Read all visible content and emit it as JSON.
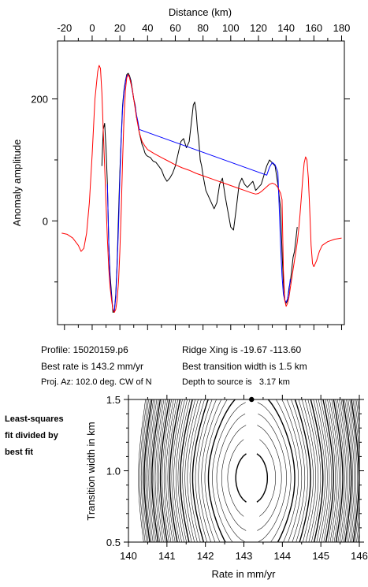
{
  "chart_data": [
    {
      "type": "line",
      "xlabel": "Distance (km)",
      "ylabel": "Anomaly amplitude",
      "xlim": [
        -25,
        182
      ],
      "ylim": [
        -170,
        295
      ],
      "xticks": [
        -20,
        0,
        20,
        40,
        60,
        80,
        100,
        120,
        140,
        160,
        180
      ],
      "yticks": [
        0,
        200
      ],
      "series": [
        {
          "color": "#000000",
          "x": [
            7,
            8,
            9,
            10,
            11,
            12,
            13,
            14,
            15,
            16,
            17,
            18,
            19,
            20,
            21,
            22,
            23,
            24,
            25,
            26,
            27,
            28,
            29,
            30,
            31,
            32,
            33,
            34,
            35,
            36,
            37,
            38,
            39,
            40,
            42,
            44,
            46,
            48,
            50,
            52,
            54,
            56,
            58,
            60,
            62,
            64,
            66,
            68,
            70,
            72,
            73,
            74,
            75,
            76,
            77,
            78,
            79,
            80,
            82,
            84,
            86,
            88,
            90,
            92,
            94,
            96,
            98,
            100,
            102,
            104,
            106,
            108,
            110,
            112,
            114,
            116,
            118,
            120,
            122,
            124,
            126,
            128,
            130,
            132,
            134,
            136,
            137,
            138,
            139,
            140,
            141,
            142,
            143,
            144,
            145,
            146,
            147,
            148
          ],
          "y": [
            90,
            150,
            160,
            120,
            60,
            -40,
            -90,
            -120,
            -150,
            -148,
            -120,
            -70,
            10,
            80,
            140,
            190,
            215,
            230,
            240,
            242,
            238,
            230,
            215,
            200,
            190,
            170,
            160,
            145,
            135,
            125,
            120,
            112,
            108,
            106,
            104,
            98,
            96,
            90,
            84,
            72,
            65,
            70,
            78,
            90,
            110,
            130,
            135,
            120,
            130,
            170,
            190,
            195,
            180,
            150,
            130,
            100,
            90,
            75,
            50,
            40,
            30,
            20,
            30,
            60,
            70,
            40,
            15,
            -10,
            -15,
            20,
            60,
            70,
            60,
            55,
            60,
            65,
            50,
            55,
            60,
            75,
            90,
            100,
            95,
            90,
            60,
            20,
            -50,
            -100,
            -130,
            -135,
            -130,
            -110,
            -100,
            -80,
            -60,
            -50,
            -30,
            -10
          ]
        },
        {
          "color": "#0000ff",
          "x": [
            11,
            12,
            13,
            14,
            15,
            16,
            17,
            18,
            19,
            20,
            21,
            22,
            23,
            24,
            25,
            26,
            27,
            28,
            29,
            30,
            31,
            32,
            33,
            34,
            126,
            128,
            130,
            132,
            134,
            135,
            136,
            137,
            138,
            139,
            140,
            141,
            142,
            143
          ],
          "y": [
            60,
            -40,
            -100,
            -125,
            -145,
            -148,
            -125,
            -75,
            -10,
            70,
            135,
            185,
            212,
            228,
            238,
            240,
            236,
            226,
            213,
            200,
            188,
            174,
            163,
            150,
            75,
            88,
            96,
            92,
            80,
            20,
            -40,
            -90,
            -120,
            -130,
            -133,
            -128,
            -115,
            -95
          ]
        },
        {
          "color": "#ff0000",
          "x": [
            -22,
            -18,
            -14,
            -10,
            -8,
            -6,
            -4,
            -2,
            0,
            2,
            4,
            5,
            6,
            7,
            8,
            9,
            10,
            11,
            12,
            13,
            14,
            15,
            16,
            17,
            18,
            19,
            20,
            21,
            22,
            23,
            24,
            25,
            26,
            27,
            28,
            29,
            30,
            32,
            34,
            36,
            38,
            40,
            45,
            50,
            55,
            60,
            65,
            70,
            75,
            80,
            85,
            90,
            95,
            100,
            105,
            110,
            115,
            118,
            120,
            122,
            124,
            126,
            128,
            130,
            132,
            134,
            136,
            137,
            138,
            139,
            140,
            141,
            142,
            143,
            144,
            145,
            146,
            147,
            148,
            149,
            150,
            151,
            152,
            153,
            154,
            155,
            156,
            157,
            158,
            159,
            160,
            162,
            164,
            166,
            170,
            175,
            180
          ],
          "y": [
            -20,
            -22,
            -28,
            -40,
            -50,
            -45,
            -20,
            30,
            110,
            200,
            245,
            255,
            250,
            210,
            150,
            90,
            30,
            -30,
            -80,
            -110,
            -130,
            -145,
            -150,
            -145,
            -130,
            -100,
            -50,
            20,
            100,
            170,
            215,
            235,
            240,
            235,
            225,
            215,
            200,
            170,
            145,
            130,
            123,
            117,
            110,
            104,
            98,
            92,
            87,
            83,
            78,
            74,
            70,
            66,
            62,
            58,
            54,
            50,
            46,
            44,
            45,
            48,
            52,
            56,
            60,
            62,
            60,
            55,
            45,
            35,
            -80,
            -130,
            -140,
            -135,
            -125,
            -110,
            -95,
            -80,
            -65,
            -50,
            -35,
            -15,
            10,
            40,
            70,
            95,
            105,
            100,
            70,
            20,
            -40,
            -70,
            -75,
            -65,
            -50,
            -40,
            -34,
            -30,
            -28
          ]
        }
      ]
    },
    {
      "type": "contour",
      "xlabel": "Rate in mm/yr",
      "ylabel": "Transition width in km",
      "xlim": [
        140,
        146
      ],
      "ylim": [
        0.5,
        1.5
      ],
      "xticks": [
        140,
        141,
        142,
        143,
        144,
        145,
        146
      ],
      "yticks": [
        0.5,
        1.0,
        1.5
      ],
      "best_fit": {
        "rate": 143.2,
        "width": 1.5
      }
    }
  ],
  "info": {
    "profile": "Profile: 15020159.p6",
    "best_rate": "Best rate is 143.2 mm/yr",
    "proj_az": "Proj. Az: 102.0 deg. CW of N",
    "ridge_xing": "Ridge Xing is -19.67 -113.60",
    "best_width": "Best transition width is 1.5 km",
    "depth": "Depth to source is   3.17 km"
  },
  "side_note": [
    "Least-squares",
    "fit divided by",
    "best fit"
  ]
}
